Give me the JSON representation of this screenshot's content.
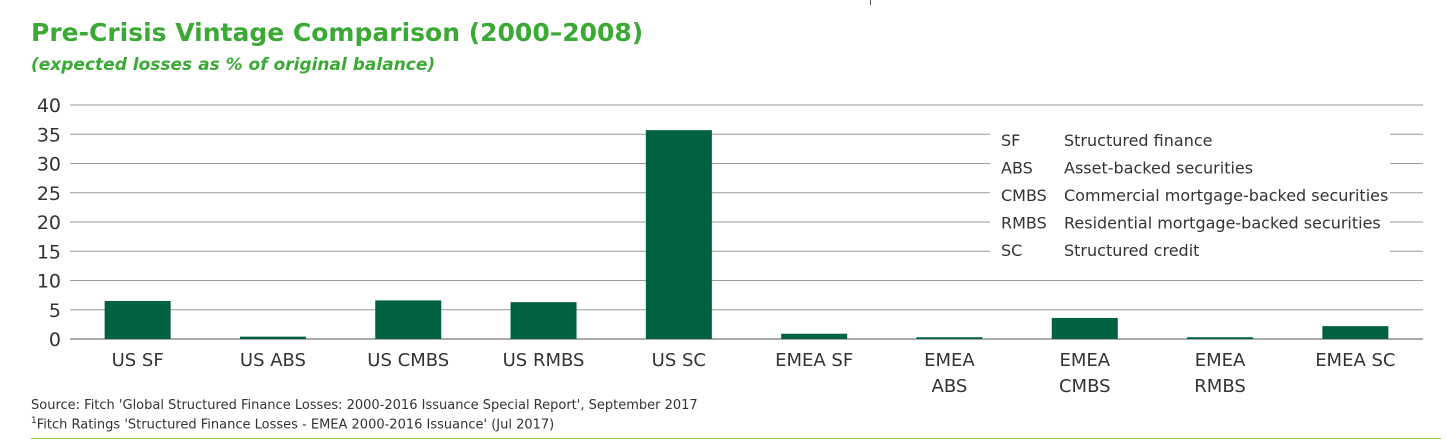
{
  "title": "Pre-Crisis Vintage Comparison (2000–2008)",
  "subtitle": "(expected losses as % of original balance)",
  "colors": {
    "title": "#3aaa35",
    "bar": "#006241",
    "grid": "#9a9a9a",
    "rule": "#8cc63f"
  },
  "chart_data": {
    "type": "bar",
    "categories": [
      "US SF",
      "US ABS",
      "US CMBS",
      "US RMBS",
      "US SC",
      "EMEA SF",
      "EMEA ABS",
      "EMEA CMBS",
      "EMEA RMBS",
      "EMEA SC"
    ],
    "values": [
      6.5,
      0.4,
      6.6,
      6.3,
      35.7,
      0.9,
      0.3,
      3.6,
      0.3,
      2.2
    ],
    "yticks": [
      0,
      5,
      10,
      15,
      20,
      25,
      30,
      35,
      40
    ],
    "ylim": [
      0,
      40
    ],
    "grid": true,
    "legend_position": "top-right",
    "legend": [
      {
        "abbr": "SF",
        "text": "Structured finance"
      },
      {
        "abbr": "ABS",
        "text": "Asset-backed securities"
      },
      {
        "abbr": "CMBS",
        "text": "Commercial mortgage-backed securities"
      },
      {
        "abbr": "RMBS",
        "text": "Residential mortgage-backed securities"
      },
      {
        "abbr": "SC",
        "text": "Structured credit"
      }
    ]
  },
  "source": "Source: Fitch 'Global Structured Finance Losses: 2000-2016 Issuance Special Report', September 2017",
  "footnote": {
    "marker": "1",
    "text": "Fitch Ratings 'Structured Finance Losses - EMEA 2000-2016 Issuance' (Jul 2017)"
  }
}
